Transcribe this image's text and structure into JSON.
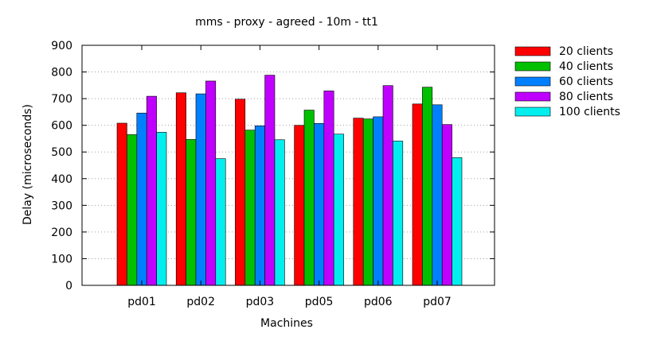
{
  "chart_data": {
    "type": "bar",
    "title": "mms - proxy - agreed - 10m - tt1",
    "xlabel": "Machines",
    "ylabel": "Delay (microseconds)",
    "ylim": [
      0,
      900
    ],
    "yticks": [
      0,
      100,
      200,
      300,
      400,
      500,
      600,
      700,
      800,
      900
    ],
    "grid": true,
    "legend_position": "right",
    "categories": [
      "pd01",
      "pd02",
      "pd03",
      "pd05",
      "pd06",
      "pd07"
    ],
    "series": [
      {
        "name": "20 clients",
        "color": "#ff0000",
        "values": [
          608,
          722,
          698,
          600,
          627,
          680
        ]
      },
      {
        "name": "40 clients",
        "color": "#00c000",
        "values": [
          565,
          547,
          582,
          657,
          624,
          743
        ]
      },
      {
        "name": "60 clients",
        "color": "#0080ff",
        "values": [
          646,
          718,
          598,
          607,
          632,
          677
        ]
      },
      {
        "name": "80 clients",
        "color": "#c000ff",
        "values": [
          709,
          766,
          788,
          729,
          749,
          603
        ]
      },
      {
        "name": "100 clients",
        "color": "#00eeee",
        "values": [
          574,
          475,
          546,
          567,
          541,
          479
        ]
      }
    ]
  }
}
